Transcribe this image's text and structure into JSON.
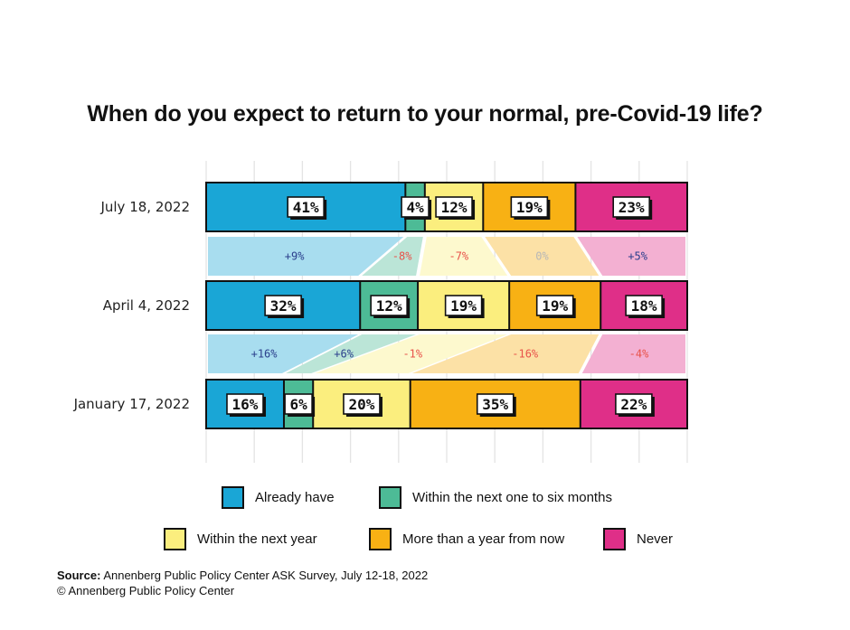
{
  "title": "When do you expect to return to your normal, pre-Covid-19 life?",
  "source_label": "Source:",
  "source_text": "Annenberg Public Policy Center ASK Survey, July 12-18, 2022",
  "copyright": "© Annenberg Public Policy Center",
  "colors": {
    "already": "#1aa6d6",
    "six_months": "#4dbb96",
    "next_year": "#fbee7e",
    "more_than_year": "#f8b114",
    "never": "#df2f88",
    "change_blue": "#2b3f8c",
    "change_red": "#e8524a",
    "change_gray": "#b7b7b7"
  },
  "chart_data": {
    "type": "bar",
    "stacked": true,
    "orientation": "horizontal",
    "categories": [
      "July 18, 2022",
      "April 4, 2022",
      "January 17, 2022"
    ],
    "series": [
      {
        "name": "Already have",
        "values": [
          41,
          32,
          16
        ],
        "labels": [
          "41%",
          "32%",
          "16%"
        ]
      },
      {
        "name": "Within the next one to six months",
        "values": [
          4,
          12,
          6
        ],
        "labels": [
          "4%",
          "12%",
          "6%"
        ]
      },
      {
        "name": "Within the next year",
        "values": [
          12,
          19,
          20
        ],
        "labels": [
          "12%",
          "19%",
          "20%"
        ]
      },
      {
        "name": "More than a year from now",
        "values": [
          19,
          19,
          35
        ],
        "labels": [
          "19%",
          "19%",
          "35%"
        ]
      },
      {
        "name": "Never",
        "values": [
          23,
          18,
          22
        ],
        "labels": [
          "23%",
          "18%",
          "22%"
        ]
      }
    ],
    "changes": [
      {
        "between": [
          "July 18, 2022",
          "April 4, 2022"
        ],
        "labels": [
          "+9%",
          "-8%",
          "-7%",
          "0%",
          "+5%"
        ]
      },
      {
        "between": [
          "April 4, 2022",
          "January 17, 2022"
        ],
        "labels": [
          "+16%",
          "+6%",
          "-1%",
          "-16%",
          "-4%"
        ]
      }
    ],
    "legend": [
      "Already have",
      "Within the next one to six months",
      "Within the next year",
      "More than a year from now",
      "Never"
    ],
    "legend_position": "bottom",
    "grid": true
  }
}
